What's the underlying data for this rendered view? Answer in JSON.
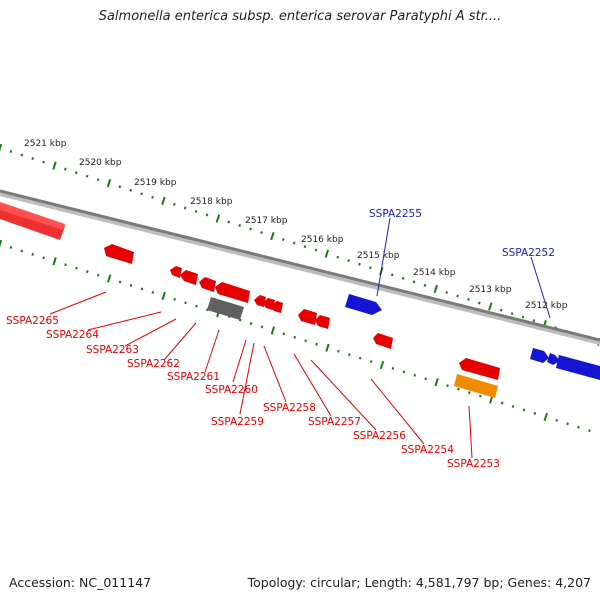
{
  "title": "Salmonella enterica subsp. enterica serovar Paratyphi A str....",
  "accession": "Accession: NC_011147",
  "topology": "Topology: circular; Length: 4,581,797 bp; Genes: 4,207",
  "colors": {
    "forward_gene": "#1414d2",
    "reverse_gene": "#e60000",
    "pseudo_gene": "#606060",
    "rna_gene": "#f08c00",
    "tick": "#1a7a1a",
    "backbone": "#808080",
    "label_red": "#e60000",
    "label_blue": "#1e1eb4"
  },
  "scale_labels": [
    "2521 kbp",
    "2520 kbp",
    "2519 kbp",
    "2518 kbp",
    "2517 kbp",
    "2516 kbp",
    "2515 kbp",
    "2514 kbp",
    "2513 kbp",
    "2512 kbp"
  ],
  "gene_labels": {
    "forward": [
      "SSPA2255",
      "SSPA2252"
    ],
    "reverse": [
      "SSPA2265",
      "SSPA2264",
      "SSPA2263",
      "SSPA2262",
      "SSPA2261",
      "SSPA2260",
      "SSPA2259",
      "SSPA2258",
      "SSPA2257",
      "SSPA2256",
      "SSPA2254",
      "SSPA2253"
    ]
  }
}
